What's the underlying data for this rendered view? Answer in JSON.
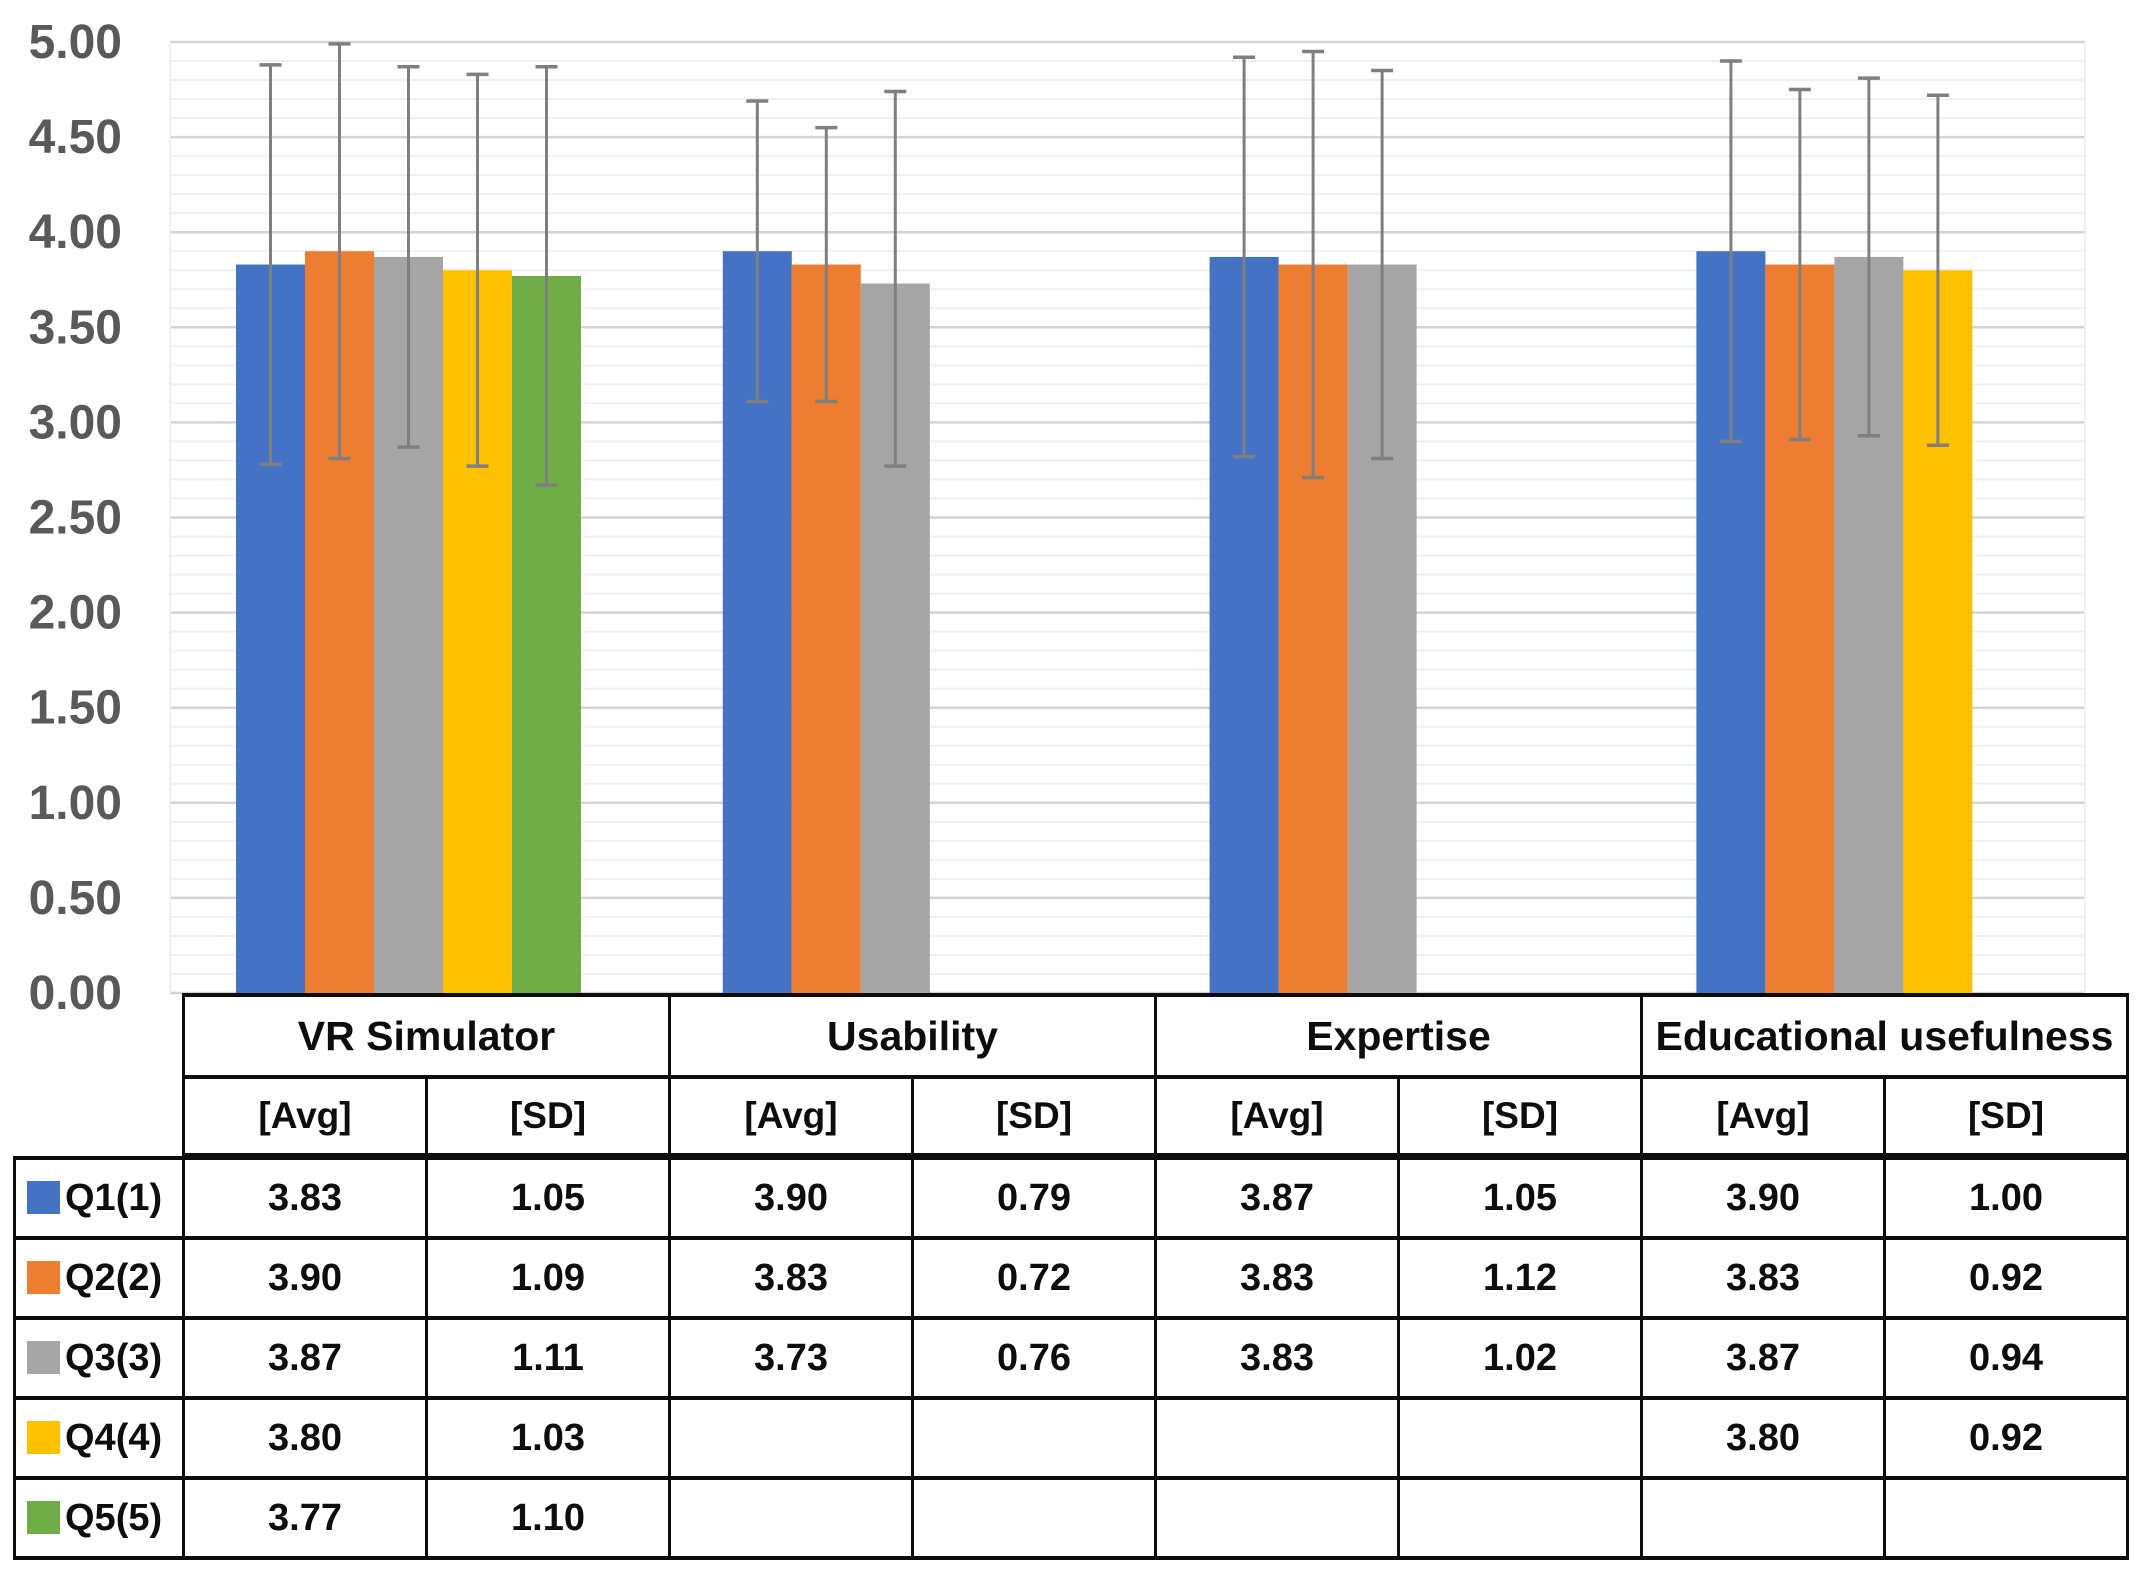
{
  "colors": {
    "series_blue": "#4472C4",
    "series_orange": "#ED7D31",
    "series_gray": "#A5A5A5",
    "series_yellow": "#FFC000",
    "series_green": "#70AD47",
    "error_bar": "#7F7F7F",
    "grid_major": "#D4D4D4",
    "grid_minor": "#F0F0F0",
    "axis_label": "#595959",
    "table_border": "#0d0d0d",
    "background": "#FFFFFF"
  },
  "chart_data": {
    "type": "bar",
    "title": "",
    "xlabel": "",
    "ylabel": "",
    "categories": [
      "VR Simulator",
      "Usability",
      "Expertise",
      "Educational usefulness"
    ],
    "series": [
      {
        "name": "Q1(1)",
        "color": "#4472C4",
        "avg": [
          3.83,
          3.9,
          3.87,
          3.9
        ],
        "sd": [
          1.05,
          0.79,
          1.05,
          1.0
        ]
      },
      {
        "name": "Q2(2)",
        "color": "#ED7D31",
        "avg": [
          3.9,
          3.83,
          3.83,
          3.83
        ],
        "sd": [
          1.09,
          0.72,
          1.12,
          0.92
        ]
      },
      {
        "name": "Q3(3)",
        "color": "#A5A5A5",
        "avg": [
          3.87,
          3.73,
          3.83,
          3.87
        ],
        "sd": [
          1.11,
          0.76,
          1.02,
          0.94
        ]
      },
      {
        "name": "Q4(4)",
        "color": "#FFC000",
        "avg": [
          3.8,
          null,
          null,
          3.8
        ],
        "sd": [
          1.03,
          null,
          null,
          0.92
        ]
      },
      {
        "name": "Q5(5)",
        "color": "#70AD47",
        "avg": [
          3.77,
          null,
          null,
          null
        ],
        "sd": [
          1.1,
          null,
          null,
          null
        ]
      }
    ],
    "error_bars": "avg plus/minus sd",
    "whisker_overrides_as_drawn": [
      {
        "category": "VR Simulator",
        "series": "Q3(3)",
        "low": 2.87,
        "high": 4.87
      },
      {
        "category": "Usability",
        "series": "Q3(3)",
        "low": 2.77,
        "high": 4.74
      }
    ],
    "ylim": [
      0,
      5
    ],
    "ytick_step": 0.5,
    "minor_grid_step": 0.1,
    "ytick_labels": [
      "0.00",
      "0.50",
      "1.00",
      "1.50",
      "2.00",
      "2.50",
      "3.00",
      "3.50",
      "4.00",
      "4.50",
      "5.00"
    ],
    "grid": true,
    "legend_position": "table-row-labels"
  },
  "table": {
    "categories": [
      "VR Simulator",
      "Usability",
      "Expertise",
      "Educational usefulness"
    ],
    "sub_headers": [
      "[Avg]",
      "[SD]",
      "[Avg]",
      "[SD]",
      "[Avg]",
      "[SD]",
      "[Avg]",
      "[SD]"
    ],
    "rows": [
      {
        "label": "Q1(1)",
        "swatch": "#4472C4",
        "cells": [
          "3.83",
          "1.05",
          "3.90",
          "0.79",
          "3.87",
          "1.05",
          "3.90",
          "1.00"
        ]
      },
      {
        "label": "Q2(2)",
        "swatch": "#ED7D31",
        "cells": [
          "3.90",
          "1.09",
          "3.83",
          "0.72",
          "3.83",
          "1.12",
          "3.83",
          "0.92"
        ]
      },
      {
        "label": "Q3(3)",
        "swatch": "#A5A5A5",
        "cells": [
          "3.87",
          "1.11",
          "3.73",
          "0.76",
          "3.83",
          "1.02",
          "3.87",
          "0.94"
        ]
      },
      {
        "label": "Q4(4)",
        "swatch": "#FFC000",
        "cells": [
          "3.80",
          "1.03",
          "",
          "",
          "",
          "",
          "3.80",
          "0.92"
        ]
      },
      {
        "label": "Q5(5)",
        "swatch": "#70AD47",
        "cells": [
          "3.77",
          "1.10",
          "",
          "",
          "",
          "",
          "",
          ""
        ]
      }
    ]
  }
}
